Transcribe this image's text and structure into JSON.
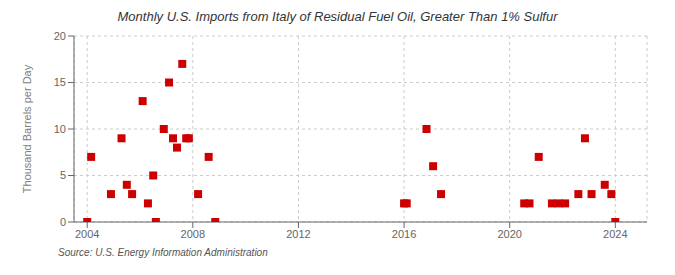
{
  "chart_data": {
    "type": "scatter",
    "title": "Monthly U.S. Imports from Italy of Residual Fuel Oil, Greater Than 1% Sulfur",
    "ylabel": "Thousand Barrels per Day",
    "annotations": [
      "Source: U.S. Energy Information Administration"
    ],
    "color": "#cc0000",
    "marker": "square",
    "grid": true,
    "xlim": [
      2003.5,
      2025.2
    ],
    "xticks": [
      2004,
      2008,
      2012,
      2016,
      2020,
      2024
    ],
    "ylim": [
      0,
      20
    ],
    "yticks": [
      0,
      5,
      10,
      15,
      20
    ],
    "x": [
      2004.0,
      2004.15,
      2004.9,
      2005.3,
      2005.5,
      2005.7,
      2006.1,
      2006.3,
      2006.5,
      2006.6,
      2006.9,
      2007.1,
      2007.25,
      2007.4,
      2007.6,
      2007.75,
      2007.85,
      2008.2,
      2008.6,
      2008.85,
      2016.0,
      2016.1,
      2016.85,
      2017.1,
      2017.4,
      2020.55,
      2020.75,
      2021.1,
      2021.6,
      2021.85,
      2022.1,
      2022.6,
      2022.85,
      2023.1,
      2023.6,
      2023.85,
      2024.0
    ],
    "values": [
      0.0,
      7.0,
      3.0,
      9.0,
      4.0,
      3.0,
      13.0,
      2.0,
      5.0,
      0.0,
      10.0,
      15.0,
      9.0,
      8.0,
      17.0,
      9.0,
      9.0,
      3.0,
      7.0,
      0.0,
      2.0,
      2.0,
      10.0,
      6.0,
      3.0,
      2.0,
      2.0,
      7.0,
      2.0,
      2.0,
      2.0,
      3.0,
      9.0,
      3.0,
      4.0,
      3.0,
      0.0
    ]
  }
}
